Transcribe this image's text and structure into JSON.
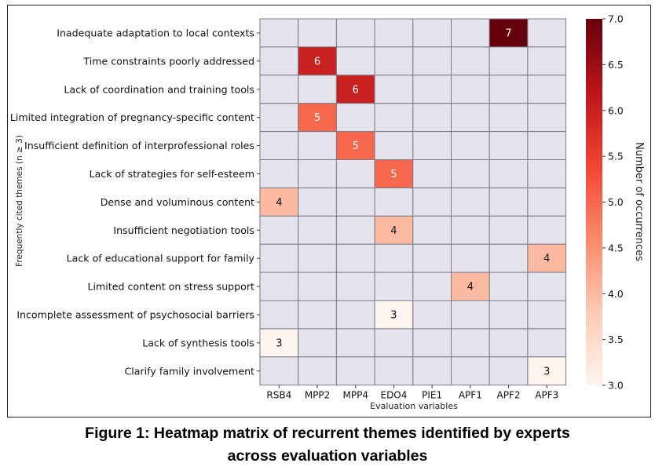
{
  "chart_data": {
    "type": "heatmap",
    "xlabel": "Evaluation variables",
    "ylabel": "Frequently cited themes (n ≥ 3)",
    "x_categories": [
      "RSB4",
      "MPP2",
      "MPP4",
      "EDO4",
      "PIE1",
      "APF1",
      "APF2",
      "APF3"
    ],
    "y_categories": [
      "Inadequate adaptation to local contexts",
      "Time constraints poorly addressed",
      "Lack of coordination and training tools",
      "Limited integration of pregnancy-specific content",
      "Insufficient definition of interprofessional roles",
      "Lack of strategies for self-esteem",
      "Dense and voluminous content",
      "Insufficient negotiation tools",
      "Lack of educational support for family",
      "Limited content on stress support",
      "Incomplete assessment of psychosocial barriers",
      "Lack of synthesis tools",
      "Clarify family involvement"
    ],
    "cells": [
      {
        "row": 0,
        "col": 6,
        "value": 7
      },
      {
        "row": 1,
        "col": 1,
        "value": 6
      },
      {
        "row": 2,
        "col": 2,
        "value": 6
      },
      {
        "row": 3,
        "col": 1,
        "value": 5
      },
      {
        "row": 4,
        "col": 2,
        "value": 5
      },
      {
        "row": 5,
        "col": 3,
        "value": 5
      },
      {
        "row": 6,
        "col": 0,
        "value": 4
      },
      {
        "row": 7,
        "col": 3,
        "value": 4
      },
      {
        "row": 8,
        "col": 7,
        "value": 4
      },
      {
        "row": 9,
        "col": 5,
        "value": 4
      },
      {
        "row": 10,
        "col": 3,
        "value": 3
      },
      {
        "row": 11,
        "col": 0,
        "value": 3
      },
      {
        "row": 12,
        "col": 7,
        "value": 3
      }
    ],
    "empty_color": "#e4e3ee",
    "grid_color": "#7a7a84",
    "colorbar": {
      "label": "Number of occurrences",
      "vmin": 3.0,
      "vmax": 7.0,
      "ticks": [
        "3.0",
        "3.5",
        "4.0",
        "4.5",
        "5.0",
        "5.5",
        "6.0",
        "6.5",
        "7.0"
      ],
      "colormap": "Reds",
      "stops": [
        "#fff5f0",
        "#fdcab5",
        "#fc8a6a",
        "#f14432",
        "#bc141a",
        "#67000d"
      ]
    }
  },
  "caption": {
    "line1": "Figure 1: Heatmap matrix of recurrent themes identified by experts",
    "line2": "across evaluation variables"
  }
}
